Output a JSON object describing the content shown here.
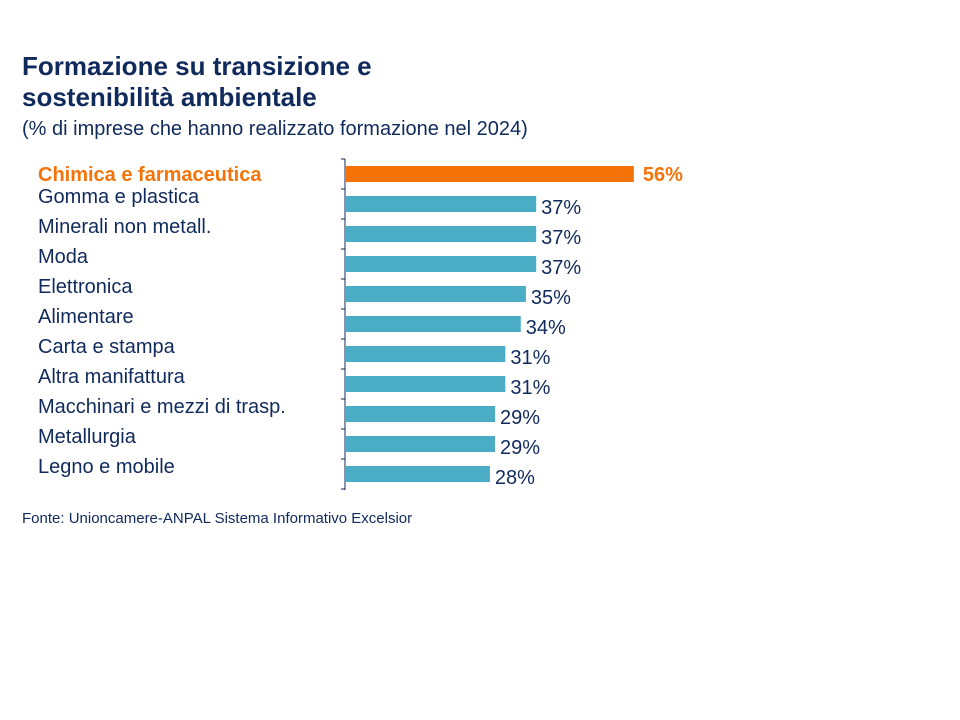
{
  "chart_data": {
    "type": "bar",
    "orientation": "horizontal",
    "title": "Formazione su transizione e sostenibilità ambientale",
    "subtitle": "(% di imprese che hanno realizzato formazione nel 2024)",
    "categories": [
      "Chimica e farmaceutica",
      "Gomma e plastica",
      "Minerali non metall.",
      "Moda",
      "Elettronica",
      "Alimentare",
      "Carta e stampa",
      "Altra manifattura",
      "Macchinari e mezzi di trasp.",
      "Metallurgia",
      "Legno e mobile"
    ],
    "values": [
      56,
      37,
      37,
      37,
      35,
      34,
      31,
      31,
      29,
      29,
      28
    ],
    "labels": [
      "56%",
      "37%",
      "37%",
      "37%",
      "35%",
      "34%",
      "31%",
      "31%",
      "29%",
      "29%",
      "28%"
    ],
    "highlight_index": 0,
    "colors": {
      "highlight": "#f5740a",
      "default": "#4bacc6",
      "text": "#102a5c"
    },
    "grid": false,
    "source": "Fonte: Unioncamere-ANPAL Sistema Informativo Excelsior"
  }
}
